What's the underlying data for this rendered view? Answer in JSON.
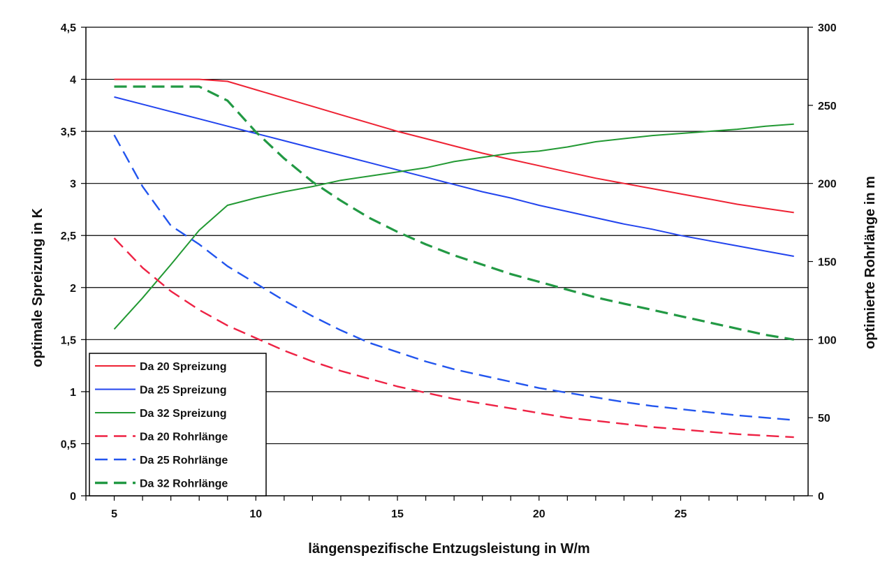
{
  "chart_data": {
    "type": "line",
    "title": "",
    "xlabel": "längenspezifische Entzugsleistung in W/m",
    "ylabel_left": "optimale Spreizung in K",
    "ylabel_right": "optimierte Rohrlänge in m",
    "xlim": [
      4.0,
      29.5
    ],
    "ylim_left": [
      0,
      4.5
    ],
    "ylim_right": [
      0,
      300
    ],
    "x_ticks": [
      5,
      10,
      15,
      20,
      25
    ],
    "y_left_ticks": [
      "0",
      "0,5",
      "1",
      "1,5",
      "2",
      "2,5",
      "3",
      "3,5",
      "4",
      "4,5"
    ],
    "y_right_ticks": [
      "0",
      "50",
      "100",
      "150",
      "200",
      "250",
      "300"
    ],
    "grid": "horizontal",
    "legend_position": "bottom-left",
    "series": [
      {
        "name": "Da 20 Spreizung",
        "axis": "left",
        "color": "#ee2233",
        "dash": "solid",
        "points": [
          [
            5,
            4.0
          ],
          [
            6,
            4.0
          ],
          [
            7,
            4.0
          ],
          [
            8,
            4.0
          ],
          [
            9,
            3.98
          ],
          [
            10,
            3.9
          ],
          [
            11,
            3.82
          ],
          [
            12,
            3.74
          ],
          [
            13,
            3.66
          ],
          [
            14,
            3.58
          ],
          [
            15,
            3.5
          ],
          [
            16,
            3.43
          ],
          [
            17,
            3.36
          ],
          [
            18,
            3.29
          ],
          [
            19,
            3.23
          ],
          [
            20,
            3.17
          ],
          [
            21,
            3.11
          ],
          [
            22,
            3.05
          ],
          [
            23,
            3.0
          ],
          [
            24,
            2.95
          ],
          [
            25,
            2.9
          ],
          [
            26,
            2.85
          ],
          [
            27,
            2.8
          ],
          [
            28,
            2.76
          ],
          [
            29,
            2.72
          ]
        ]
      },
      {
        "name": "Da 25 Spreizung",
        "axis": "left",
        "color": "#2244ee",
        "dash": "solid",
        "points": [
          [
            5,
            3.83
          ],
          [
            6,
            3.76
          ],
          [
            7,
            3.69
          ],
          [
            8,
            3.62
          ],
          [
            9,
            3.55
          ],
          [
            10,
            3.48
          ],
          [
            11,
            3.41
          ],
          [
            12,
            3.34
          ],
          [
            13,
            3.27
          ],
          [
            14,
            3.2
          ],
          [
            15,
            3.13
          ],
          [
            16,
            3.06
          ],
          [
            17,
            2.99
          ],
          [
            18,
            2.92
          ],
          [
            19,
            2.86
          ],
          [
            20,
            2.79
          ],
          [
            21,
            2.73
          ],
          [
            22,
            2.67
          ],
          [
            23,
            2.61
          ],
          [
            24,
            2.56
          ],
          [
            25,
            2.5
          ],
          [
            26,
            2.45
          ],
          [
            27,
            2.4
          ],
          [
            28,
            2.35
          ],
          [
            29,
            2.3
          ]
        ]
      },
      {
        "name": "Da 32 Spreizung",
        "axis": "left",
        "color": "#229933",
        "dash": "solid",
        "points": [
          [
            5,
            1.6
          ],
          [
            6,
            1.9
          ],
          [
            7,
            2.22
          ],
          [
            8,
            2.55
          ],
          [
            9,
            2.79
          ],
          [
            10,
            2.86
          ],
          [
            11,
            2.92
          ],
          [
            12,
            2.97
          ],
          [
            13,
            3.03
          ],
          [
            14,
            3.07
          ],
          [
            15,
            3.11
          ],
          [
            16,
            3.15
          ],
          [
            17,
            3.21
          ],
          [
            18,
            3.25
          ],
          [
            19,
            3.29
          ],
          [
            20,
            3.31
          ],
          [
            21,
            3.35
          ],
          [
            22,
            3.4
          ],
          [
            23,
            3.43
          ],
          [
            24,
            3.46
          ],
          [
            25,
            3.48
          ],
          [
            26,
            3.5
          ],
          [
            27,
            3.52
          ],
          [
            28,
            3.55
          ],
          [
            29,
            3.57
          ]
        ]
      },
      {
        "name": "Da 20 Rohrlänge",
        "axis": "right",
        "color": "#ee2244",
        "dash": "dashed",
        "points": [
          [
            5,
            165
          ],
          [
            6,
            146
          ],
          [
            7,
            131
          ],
          [
            8,
            119
          ],
          [
            9,
            109
          ],
          [
            10,
            101
          ],
          [
            11,
            93
          ],
          [
            12,
            86
          ],
          [
            13,
            80
          ],
          [
            14,
            75
          ],
          [
            15,
            70
          ],
          [
            16,
            66
          ],
          [
            17,
            62
          ],
          [
            18,
            59
          ],
          [
            19,
            56
          ],
          [
            20,
            53
          ],
          [
            21,
            50
          ],
          [
            22,
            48
          ],
          [
            23,
            46
          ],
          [
            24,
            44
          ],
          [
            25,
            42.5
          ],
          [
            26,
            41
          ],
          [
            27,
            39.5
          ],
          [
            28,
            38.5
          ],
          [
            29,
            37.5
          ]
        ]
      },
      {
        "name": "Da 25 Rohrlänge",
        "axis": "right",
        "color": "#2255ee",
        "dash": "dashed",
        "points": [
          [
            5,
            231
          ],
          [
            6,
            198
          ],
          [
            7,
            173
          ],
          [
            8,
            161
          ],
          [
            9,
            147
          ],
          [
            10,
            136
          ],
          [
            11,
            125
          ],
          [
            12,
            115
          ],
          [
            13,
            106
          ],
          [
            14,
            98
          ],
          [
            15,
            92
          ],
          [
            16,
            86
          ],
          [
            17,
            81
          ],
          [
            18,
            77
          ],
          [
            19,
            73
          ],
          [
            20,
            69
          ],
          [
            21,
            66
          ],
          [
            22,
            63
          ],
          [
            23,
            60
          ],
          [
            24,
            57.5
          ],
          [
            25,
            55.5
          ],
          [
            26,
            53.5
          ],
          [
            27,
            51.5
          ],
          [
            28,
            50
          ],
          [
            29,
            48.5
          ]
        ]
      },
      {
        "name": "Da 32 Rohrlänge",
        "axis": "right",
        "color": "#229944",
        "dash": "dashed",
        "points": [
          [
            5,
            262
          ],
          [
            6,
            262
          ],
          [
            7,
            262
          ],
          [
            8,
            262
          ],
          [
            9,
            253
          ],
          [
            10,
            233
          ],
          [
            11,
            216
          ],
          [
            12,
            201
          ],
          [
            13,
            189
          ],
          [
            14,
            178
          ],
          [
            15,
            169
          ],
          [
            16,
            161
          ],
          [
            17,
            154
          ],
          [
            18,
            148
          ],
          [
            19,
            142
          ],
          [
            20,
            137
          ],
          [
            21,
            132
          ],
          [
            22,
            127
          ],
          [
            23,
            123
          ],
          [
            24,
            119
          ],
          [
            25,
            115
          ],
          [
            26,
            111
          ],
          [
            27,
            107
          ],
          [
            28,
            103
          ],
          [
            29,
            100
          ]
        ]
      }
    ]
  }
}
